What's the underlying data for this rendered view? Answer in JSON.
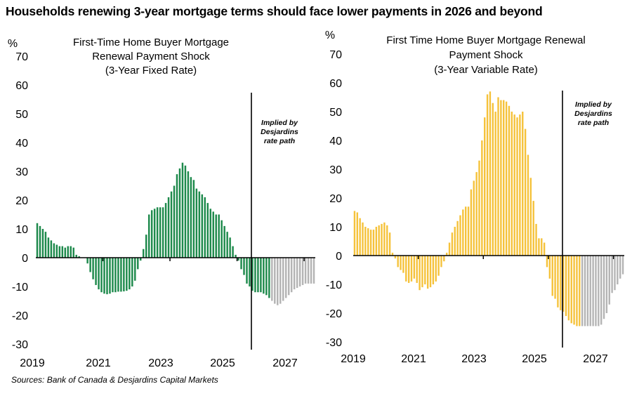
{
  "title": "Households renewing 3-year mortgage terms should face lower payments in 2026 and beyond",
  "source": "Sources: Bank of Canada & Desjardins Capital Markets",
  "colors": {
    "fixed": "#1e8a4c",
    "variable": "#f5c23a",
    "forecast": "#b4b4b4",
    "axis": "#000000"
  },
  "chart_data": [
    {
      "type": "bar",
      "title_lines": [
        "First-Time Home Buyer Mortgage",
        "Renewal Payment Shock",
        "(3-Year Fixed Rate)"
      ],
      "ylabel": "%",
      "ylim": [
        -30,
        70
      ],
      "yticks": [
        -30,
        -20,
        -10,
        0,
        10,
        20,
        30,
        40,
        50,
        60,
        70
      ],
      "xlabels": [
        "2019",
        "2021",
        "2023",
        "2025",
        "2027"
      ],
      "xstart": "2019-01",
      "forecast_start_index": 84,
      "annotation_lines": [
        "Implied by",
        "Desjardins",
        "rate path"
      ],
      "values": [
        12,
        11,
        10,
        9,
        7,
        6,
        5,
        4.5,
        4,
        4,
        3.5,
        4,
        4,
        3.5,
        1,
        0.5,
        0,
        0,
        -2,
        -5,
        -7.5,
        -9.5,
        -11,
        -12,
        -12.5,
        -12.7,
        -12.5,
        -12,
        -12,
        -11.8,
        -11.8,
        -11.7,
        -11.5,
        -11,
        -10,
        -8,
        -4,
        -1,
        3,
        8,
        15,
        16.5,
        17,
        17.5,
        17.5,
        17.5,
        19,
        21,
        23,
        25,
        29,
        31,
        33,
        32,
        30,
        28,
        27,
        24,
        23,
        22,
        21,
        19,
        17,
        16,
        15,
        15,
        13,
        11,
        9,
        7,
        4,
        1,
        -1,
        -4,
        -6,
        -9,
        -10,
        -11.5,
        -12,
        -12,
        -12,
        -12.5,
        -13,
        -14,
        -15,
        -16,
        -16.5,
        -16,
        -15,
        -14,
        -13,
        -12,
        -11,
        -10.5,
        -10,
        -9.5,
        -9,
        -9,
        -9,
        -9
      ],
      "series": [
        {
          "name": "Renewal payment shock (3-year fixed)",
          "historical_color": "fixed",
          "forecast_color": "forecast"
        }
      ]
    },
    {
      "type": "bar",
      "title_lines": [
        "First Time Home Buyer Mortgage Renewal",
        "Payment Shock",
        "(3-Year Variable Rate)"
      ],
      "ylabel": "%",
      "ylim": [
        -30,
        70
      ],
      "yticks": [
        -30,
        -20,
        -10,
        0,
        10,
        20,
        30,
        40,
        50,
        60,
        70
      ],
      "xlabels": [
        "2019",
        "2021",
        "2023",
        "2025",
        "2027"
      ],
      "xstart": "2019-01",
      "forecast_start_index": 84,
      "annotation_lines": [
        "Implied by",
        "Desjardins",
        "rate path"
      ],
      "values": [
        15.5,
        15,
        13,
        11.5,
        10,
        9.5,
        9,
        9,
        10,
        10.5,
        11,
        11.5,
        10.5,
        8,
        1,
        -1,
        -4,
        -5,
        -6,
        -9,
        -9.5,
        -9,
        -8,
        -9.5,
        -12,
        -11,
        -10,
        -11.5,
        -11,
        -10,
        -9,
        -7,
        -4,
        -2,
        1,
        4.5,
        8,
        10,
        12,
        14,
        16,
        17,
        17,
        23,
        26,
        29,
        33,
        40,
        48,
        56,
        57,
        53,
        50,
        55,
        54,
        54,
        53.5,
        52,
        50,
        49,
        48,
        49,
        50,
        44,
        35,
        27,
        19,
        11,
        6,
        6,
        4.5,
        -4,
        -8,
        -14,
        -15,
        -18,
        -19,
        -19.5,
        -21,
        -22.5,
        -23.5,
        -24,
        -24.5,
        -24.5,
        -24.5,
        -24.5,
        -24.5,
        -24.5,
        -24.5,
        -24.5,
        -24.5,
        -24,
        -22,
        -20,
        -17,
        -13,
        -12,
        -10,
        -8,
        -6.5
      ]
    }
  ]
}
